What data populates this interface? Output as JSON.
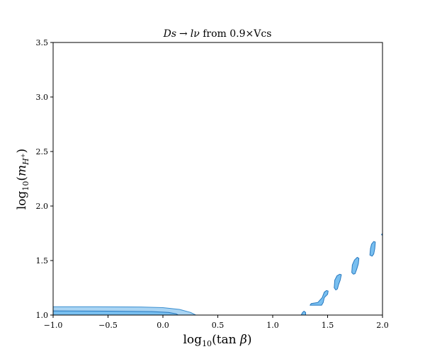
{
  "chart_data": {
    "type": "contour",
    "title": "Ds → lν from 0.9×Vcs",
    "title_parts": {
      "d": "Ds",
      "arrow": "→",
      "lnu": "lν",
      "rest": " from 0.9×Vcs"
    },
    "xlabel": "log10(tan β)",
    "xlabel_parts": {
      "log": "log",
      "sub": "10",
      "open": "(tan ",
      "beta": "β",
      "close": ")"
    },
    "ylabel": "log10(mH+)",
    "ylabel_parts": {
      "log": "log",
      "sub": "10",
      "open": "(",
      "m": "m",
      "h": "H",
      "plus": "+",
      "close": ")"
    },
    "xlim": [
      -1.0,
      2.0
    ],
    "ylim": [
      1.0,
      3.5
    ],
    "xticks": [
      -1.0,
      -0.5,
      0.0,
      0.5,
      1.0,
      1.5,
      2.0
    ],
    "xtick_labels": [
      "−1.0",
      "−0.5",
      "0.0",
      "0.5",
      "1.0",
      "1.5",
      "2.0"
    ],
    "yticks": [
      1.0,
      1.5,
      2.0,
      2.5,
      3.0,
      3.5
    ],
    "ytick_labels": [
      "1.0",
      "1.5",
      "2.0",
      "2.5",
      "3.0",
      "3.5"
    ],
    "grid": false,
    "regions": [
      {
        "level": "outer",
        "fill": "#a9d4f3",
        "stroke": "#3b8fd0",
        "points": [
          [
            -1.0,
            1.0
          ],
          [
            -1.0,
            1.076
          ],
          [
            -0.6,
            1.076
          ],
          [
            -0.2,
            1.074
          ],
          [
            0.0,
            1.068
          ],
          [
            0.15,
            1.052
          ],
          [
            0.25,
            1.025
          ],
          [
            0.3,
            1.0
          ]
        ]
      },
      {
        "level": "inner",
        "fill": "#78bff0",
        "stroke": "#2878be",
        "points": [
          [
            -1.0,
            1.0
          ],
          [
            -1.0,
            1.038
          ],
          [
            -0.5,
            1.036
          ],
          [
            -0.1,
            1.032
          ],
          [
            0.05,
            1.025
          ],
          [
            0.12,
            1.012
          ],
          [
            0.14,
            1.0
          ]
        ]
      },
      {
        "level": "inner",
        "fill": "#78bff0",
        "stroke": "#2878be",
        "points": [
          [
            1.26,
            1.0
          ],
          [
            1.27,
            1.022
          ],
          [
            1.285,
            1.036
          ],
          [
            1.3,
            1.024
          ],
          [
            1.3,
            1.0
          ]
        ]
      },
      {
        "level": "inner",
        "fill": "#78bff0",
        "stroke": "#2878be",
        "points": [
          [
            1.34,
            1.09
          ],
          [
            1.35,
            1.105
          ],
          [
            1.41,
            1.115
          ],
          [
            1.45,
            1.16
          ],
          [
            1.47,
            1.21
          ],
          [
            1.49,
            1.225
          ],
          [
            1.505,
            1.22
          ],
          [
            1.5,
            1.19
          ],
          [
            1.47,
            1.16
          ],
          [
            1.46,
            1.115
          ],
          [
            1.445,
            1.09
          ]
        ]
      },
      {
        "level": "inner",
        "fill": "#78bff0",
        "stroke": "#2878be",
        "points": [
          [
            1.56,
            1.25
          ],
          [
            1.565,
            1.32
          ],
          [
            1.585,
            1.36
          ],
          [
            1.61,
            1.375
          ],
          [
            1.625,
            1.37
          ],
          [
            1.615,
            1.32
          ],
          [
            1.6,
            1.28
          ],
          [
            1.59,
            1.24
          ],
          [
            1.575,
            1.23
          ]
        ]
      },
      {
        "level": "inner",
        "fill": "#78bff0",
        "stroke": "#2878be",
        "points": [
          [
            1.72,
            1.39
          ],
          [
            1.725,
            1.46
          ],
          [
            1.745,
            1.505
          ],
          [
            1.77,
            1.53
          ],
          [
            1.785,
            1.52
          ],
          [
            1.78,
            1.47
          ],
          [
            1.765,
            1.42
          ],
          [
            1.75,
            1.38
          ],
          [
            1.735,
            1.375
          ]
        ]
      },
      {
        "level": "inner",
        "fill": "#78bff0",
        "stroke": "#2878be",
        "points": [
          [
            1.885,
            1.55
          ],
          [
            1.89,
            1.61
          ],
          [
            1.9,
            1.65
          ],
          [
            1.92,
            1.675
          ],
          [
            1.935,
            1.67
          ],
          [
            1.93,
            1.61
          ],
          [
            1.92,
            1.56
          ],
          [
            1.905,
            1.54
          ]
        ]
      },
      {
        "level": "inner",
        "fill": "#78bff0",
        "stroke": "#2878be",
        "points": [
          [
            1.99,
            1.738
          ],
          [
            2.0,
            1.748
          ],
          [
            2.0,
            1.73
          ]
        ]
      }
    ]
  }
}
